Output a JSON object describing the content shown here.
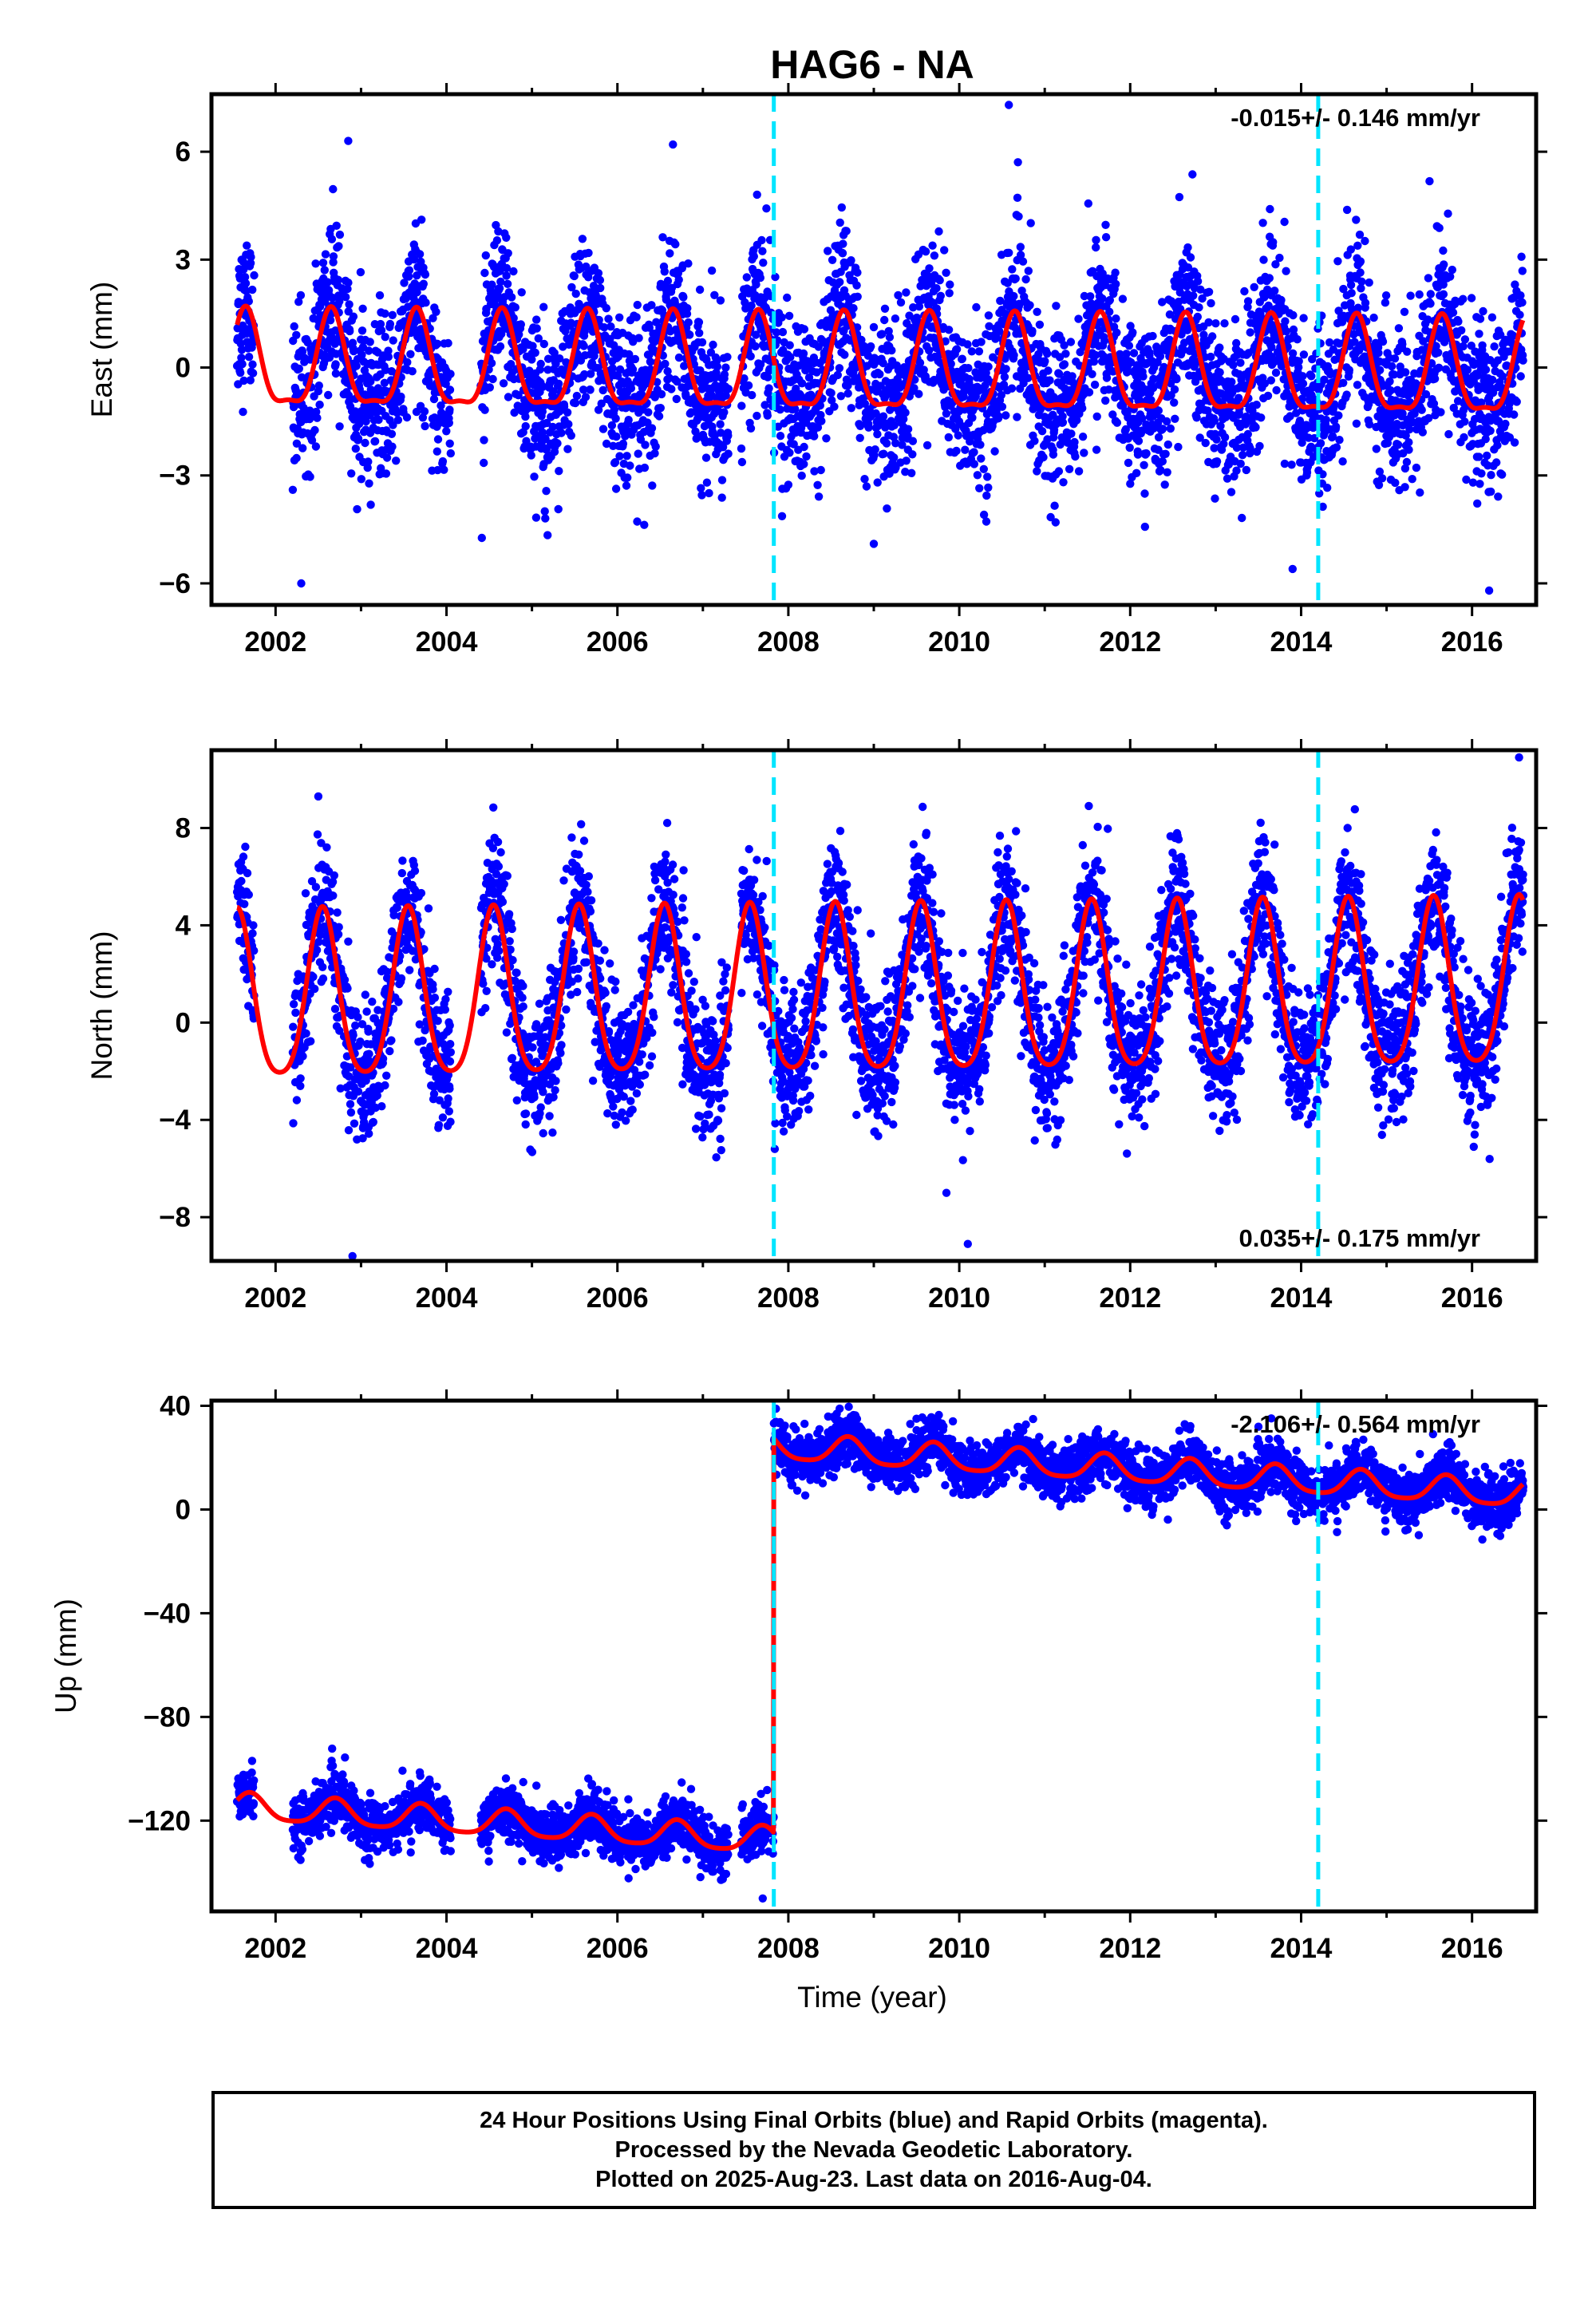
{
  "title": "HAG6 - NA",
  "xlabel": "Time (year)",
  "colors": {
    "points": "#0000ff",
    "model": "#ff0000",
    "events": "#00e5ff",
    "axes": "#000000"
  },
  "footer": [
    "24 Hour Positions Using Final Orbits (blue) and Rapid Orbits (magenta).",
    "Processed by the Nevada Geodetic Laboratory.",
    "Plotted on 2025-Aug-23. Last data on 2016-Aug-04."
  ],
  "chart_data": [
    {
      "type": "scatter",
      "ylabel": "East (mm)",
      "rate_label": "-0.015+/- 0.146 mm/yr",
      "rate_position": "top-right",
      "xlim": [
        2001.25,
        2016.75
      ],
      "ylim": [
        -6.6,
        7.6
      ],
      "xticks": [
        2002,
        2004,
        2006,
        2008,
        2010,
        2012,
        2014,
        2016
      ],
      "yticks": [
        -6,
        -3,
        0,
        3,
        6
      ],
      "event_lines": [
        2007.83,
        2014.2
      ],
      "data_range": [
        2001.55,
        2016.6
      ],
      "gaps": [
        [
          2001.75,
          2002.2
        ],
        [
          2004.05,
          2004.4
        ],
        [
          2007.3,
          2007.45
        ]
      ],
      "model": {
        "offset": -0.1,
        "annual_amplitude": 1.3,
        "annual_peak": 0.65,
        "semiannual_amplitude": 0.4,
        "trend": -0.015,
        "noise_sd": 1.1
      },
      "outliers": [
        [
          2002.85,
          6.3
        ],
        [
          2010.58,
          7.3
        ],
        [
          2002.3,
          -6.0
        ],
        [
          2016.2,
          -6.2
        ],
        [
          2013.9,
          -5.6
        ],
        [
          2006.65,
          6.2
        ],
        [
          2009.0,
          -4.9
        ]
      ]
    },
    {
      "type": "scatter",
      "ylabel": "North (mm)",
      "rate_label": "0.035+/- 0.175 mm/yr",
      "rate_position": "bottom-right",
      "xlim": [
        2001.25,
        2016.75
      ],
      "ylim": [
        -9.8,
        11.2
      ],
      "xticks": [
        2002,
        2004,
        2006,
        2008,
        2010,
        2012,
        2014,
        2016
      ],
      "yticks": [
        -8,
        -4,
        0,
        4,
        8
      ],
      "event_lines": [
        2007.83,
        2014.2
      ],
      "data_range": [
        2001.55,
        2016.6
      ],
      "gaps": [
        [
          2001.75,
          2002.2
        ],
        [
          2004.05,
          2004.4
        ],
        [
          2007.3,
          2007.45
        ]
      ],
      "model": {
        "offset": 1.0,
        "annual_amplitude": 3.4,
        "annual_peak": 0.55,
        "semiannual_amplitude": 0.6,
        "trend": 0.035,
        "noise_sd": 1.4
      },
      "outliers": [
        [
          2002.5,
          9.3
        ],
        [
          2016.55,
          10.9
        ],
        [
          2002.9,
          -9.6
        ],
        [
          2010.1,
          -9.1
        ],
        [
          2009.85,
          -7.0
        ]
      ]
    },
    {
      "type": "scatter",
      "ylabel": "Up (mm)",
      "rate_label": "-2.106+/- 0.564 mm/yr",
      "rate_position": "top-right",
      "xlim": [
        2001.25,
        2016.75
      ],
      "ylim": [
        -155,
        42
      ],
      "xticks": [
        2002,
        2004,
        2006,
        2008,
        2010,
        2012,
        2014,
        2016
      ],
      "yticks": [
        -120,
        -80,
        -40,
        0,
        40
      ],
      "event_lines": [
        2007.83,
        2014.2
      ],
      "data_range": [
        2001.55,
        2016.6
      ],
      "gaps": [
        [
          2001.75,
          2002.2
        ],
        [
          2004.05,
          2004.4
        ],
        [
          2007.3,
          2007.45
        ]
      ],
      "offset_step": {
        "epoch": 2007.83,
        "before": -128,
        "after": 24
      },
      "model": {
        "annual_amplitude": 5,
        "annual_peak": 0.7,
        "semiannual_amplitude": 1,
        "trend": -2.106,
        "noise_sd": 5
      },
      "outliers": [
        [
          2009.5,
          35
        ],
        [
          2002.8,
          -105
        ],
        [
          2007.7,
          -150
        ]
      ]
    }
  ]
}
